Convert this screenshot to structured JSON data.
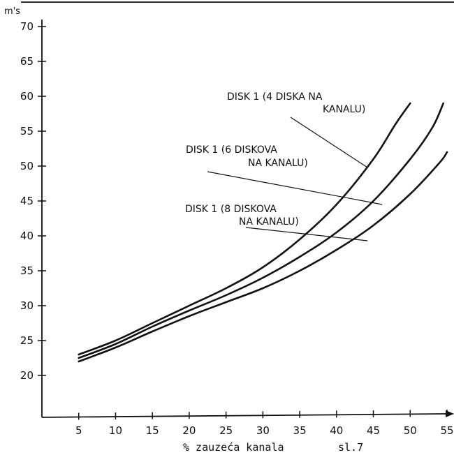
{
  "chart_data": {
    "type": "line",
    "ylabel": "m's",
    "xlabel": "% zauzeća kanala",
    "figure_label": "sl.7",
    "xlim": [
      0,
      56
    ],
    "ylim": [
      15,
      72
    ],
    "x_ticks": [
      5,
      10,
      15,
      20,
      25,
      30,
      35,
      40,
      45,
      50,
      55
    ],
    "y_ticks": [
      20,
      25,
      30,
      35,
      40,
      45,
      50,
      55,
      60,
      65,
      70
    ],
    "grid": false,
    "series": [
      {
        "name": "DISK 1 (4 DISKA NA KANALU)",
        "label_lines": [
          "DISK 1 (4 DISKA NA",
          "KANALU)"
        ],
        "x": [
          5,
          10,
          15,
          20,
          25,
          30,
          35,
          40,
          45,
          48,
          50
        ],
        "y": [
          23,
          25,
          27.5,
          30,
          32.5,
          35.5,
          39.5,
          44.5,
          51,
          56,
          59
        ]
      },
      {
        "name": "DISK 1 (6 DISKOVA NA KANALU)",
        "label_lines": [
          "DISK 1 (6 DISKOVA",
          "NA KANALU)"
        ],
        "x": [
          5,
          10,
          15,
          20,
          25,
          30,
          35,
          40,
          45,
          50,
          53,
          54.5
        ],
        "y": [
          22.5,
          24.5,
          27,
          29.3,
          31.5,
          34,
          37,
          40.5,
          45,
          51,
          55.5,
          59
        ]
      },
      {
        "name": "DISK 1 (8 DISKOVA NA KANALU)",
        "label_lines": [
          "DISK 1 (8 DISKOVA",
          "NA KANALU)"
        ],
        "x": [
          5,
          10,
          15,
          20,
          25,
          30,
          35,
          40,
          45,
          50,
          54,
          55
        ],
        "y": [
          22,
          24,
          26.3,
          28.5,
          30.5,
          32.5,
          35,
          38,
          41.5,
          46,
          50.5,
          52
        ]
      }
    ]
  }
}
